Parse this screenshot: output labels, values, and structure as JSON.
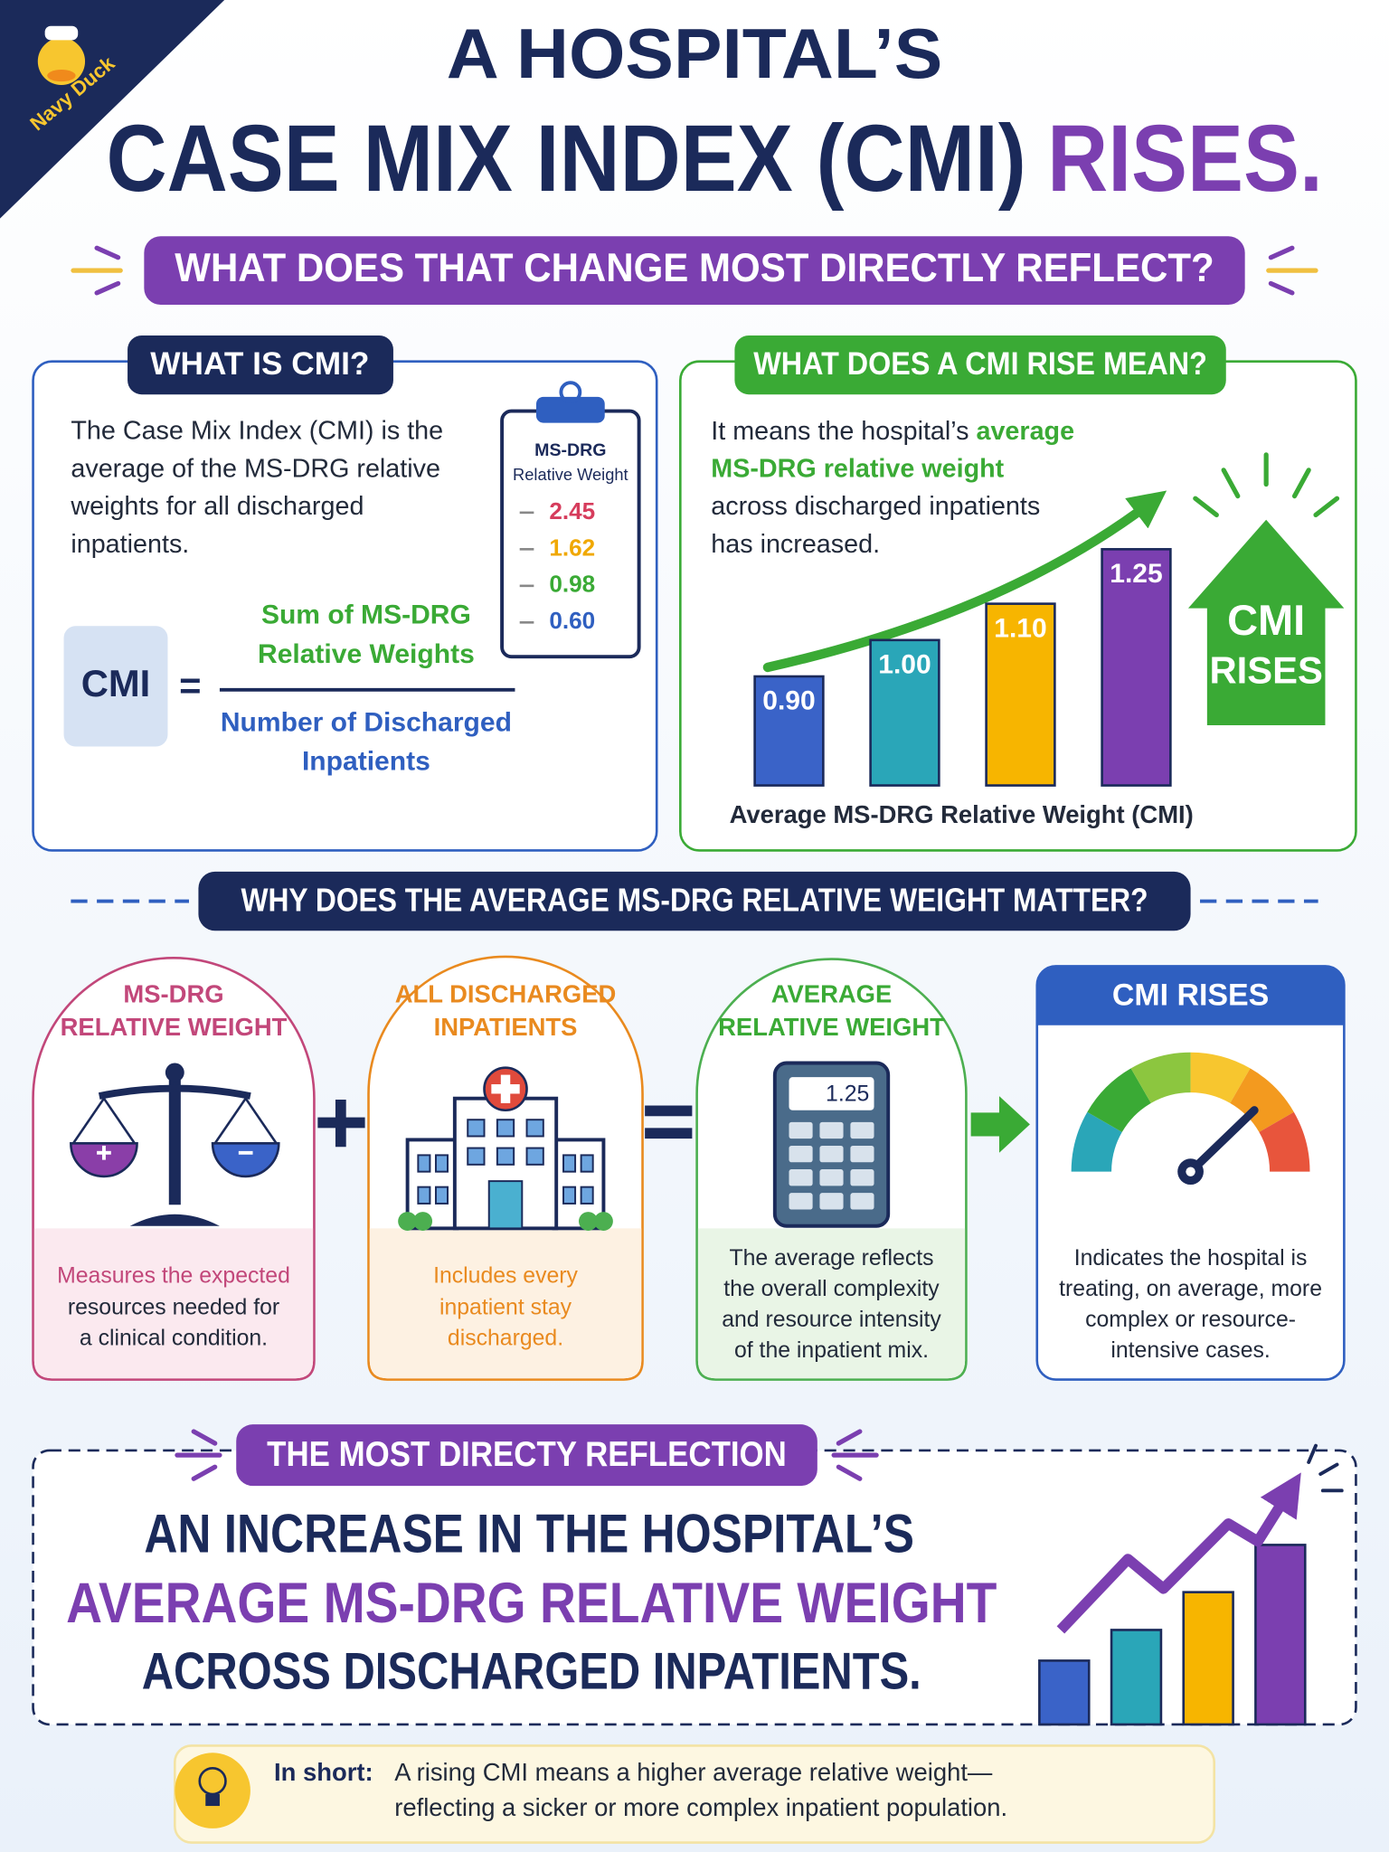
{
  "logo": "Navy Duck",
  "header": {
    "title_line1": "A HOSPITAL’S",
    "title_line2": [
      "CASE MIX INDEX (CMI)",
      "RISES."
    ],
    "question": "WHAT DOES THAT CHANGE MOST DIRECTLY REFLECT?"
  },
  "what_is_cmi": {
    "heading": "WHAT IS CMI?",
    "text": [
      "The Case Mix Index (CMI) is the",
      "average of the MS-DRG relative",
      "weights for all discharged",
      "inpatients."
    ],
    "clipboard": {
      "title": "MS-DRG",
      "subtitle": "Relative Weight",
      "values": [
        "2.45",
        "1.62",
        "0.98",
        "0.60"
      ]
    },
    "formula": {
      "lhs": "CMI",
      "equals": "=",
      "numerator": [
        "Sum of MS-DRG",
        "Relative Weights"
      ],
      "denominator": [
        "Number of Discharged",
        "Inpatients"
      ]
    }
  },
  "cmi_rise": {
    "heading": "WHAT DOES A CMI RISE MEAN?",
    "text": [
      [
        "It means the hospital’s ",
        "average"
      ],
      [
        "MS-DRG relative weight"
      ],
      [
        "across discharged inpatients"
      ],
      [
        "has increased."
      ]
    ],
    "arrow_label": [
      "CMI",
      "RISES"
    ],
    "chart": {
      "type": "bar",
      "x_label": "Average MS-DRG Relative Weight (CMI)",
      "values": [
        0.9,
        1.0,
        1.1,
        1.25
      ],
      "value_labels": [
        "0.90",
        "1.00",
        "1.10",
        "1.25"
      ],
      "colors": [
        "#3a63c8",
        "#2aa6b8",
        "#f7b500",
        "#7b3fb0"
      ],
      "ylim": [
        0.6,
        1.25
      ]
    }
  },
  "why": {
    "heading": "WHY DOES THE AVERAGE MS-DRG RELATIVE WEIGHT MATTER?",
    "cards": [
      {
        "title": [
          "MS-DRG",
          "RELATIVE WEIGHT"
        ],
        "text": [
          "Measures the expected",
          "resources needed for",
          "a clinical condition."
        ]
      },
      {
        "title": [
          "ALL DISCHARGED",
          "INPATIENTS"
        ],
        "text": [
          "Includes every",
          "inpatient stay",
          "discharged."
        ]
      },
      {
        "title": [
          "AVERAGE",
          "RELATIVE WEIGHT"
        ],
        "display": "1.25",
        "text": [
          "The average reflects",
          "the overall complexity",
          "and resource intensity",
          "of the inpatient mix."
        ]
      },
      {
        "title": [
          "CMI RISES"
        ],
        "text": [
          "Indicates the hospital is",
          "treating, on average, more",
          "complex or resource-",
          "intensive cases."
        ]
      }
    ]
  },
  "reflection": {
    "heading": "THE MOST DIRECTY REFLECTION",
    "lines": [
      "AN INCREASE IN THE HOSPITAL’S",
      "AVERAGE MS-DRG RELATIVE WEIGHT",
      "ACROSS DISCHARGED INPATIENTS."
    ]
  },
  "in_short": {
    "label": "In short:",
    "text": [
      "A rising CMI means a higher average relative weight—",
      "reflecting a sicker or more complex inpatient population."
    ]
  }
}
